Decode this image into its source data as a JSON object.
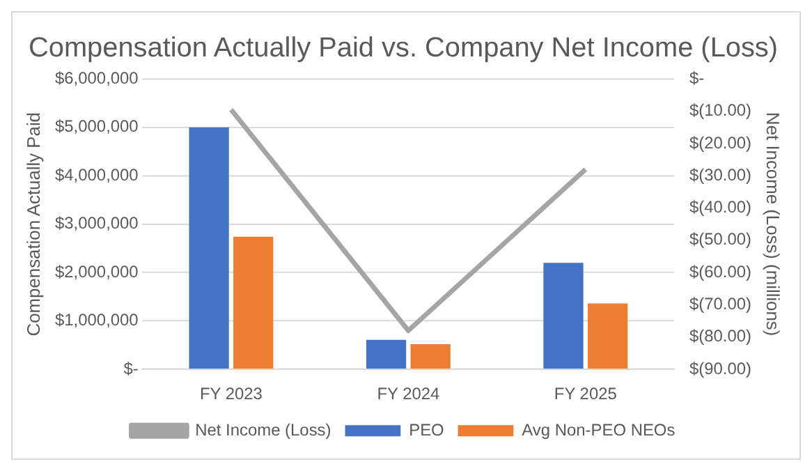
{
  "chart_data": {
    "type": "bar",
    "title": "Compensation Actually Paid vs. Company Net Income (Loss)",
    "ylabel": "Compensation Actually Paid",
    "y2label": "Net Income (Loss) (millions)",
    "categories": [
      "FY 2023",
      "FY 2024",
      "FY 2025"
    ],
    "series": [
      {
        "name": "PEO",
        "color": "#4472c4",
        "values": [
          5000000,
          610000,
          2200000
        ]
      },
      {
        "name": "Avg Non-PEO NEOs",
        "color": "#ed7d31",
        "values": [
          2740000,
          520000,
          1360000
        ]
      },
      {
        "name": "Net Income (Loss)",
        "type": "line",
        "axis": "y2",
        "color": "#a5a5a5",
        "values": [
          -9.5,
          -78,
          -28
        ]
      }
    ],
    "ylim": [
      0,
      6000000
    ],
    "yticks": [
      {
        "value": 0,
        "label": "$-"
      },
      {
        "value": 1000000,
        "label": "$1,000,000"
      },
      {
        "value": 2000000,
        "label": "$2,000,000"
      },
      {
        "value": 3000000,
        "label": "$3,000,000"
      },
      {
        "value": 4000000,
        "label": "$4,000,000"
      },
      {
        "value": 5000000,
        "label": "$5,000,000"
      },
      {
        "value": 6000000,
        "label": "$6,000,000"
      }
    ],
    "y2lim": [
      -90,
      0
    ],
    "y2ticks": [
      {
        "value": 0,
        "label": "$-"
      },
      {
        "value": -10,
        "label": "$(10.00)"
      },
      {
        "value": -20,
        "label": "$(20.00)"
      },
      {
        "value": -30,
        "label": "$(30.00)"
      },
      {
        "value": -40,
        "label": "$(40.00)"
      },
      {
        "value": -50,
        "label": "$(50.00)"
      },
      {
        "value": -60,
        "label": "$(60.00)"
      },
      {
        "value": -70,
        "label": "$(70.00)"
      },
      {
        "value": -80,
        "label": "$(80.00)"
      },
      {
        "value": -90,
        "label": "$(90.00)"
      }
    ],
    "grid": "y",
    "legend": "bottom",
    "marker": "none"
  }
}
